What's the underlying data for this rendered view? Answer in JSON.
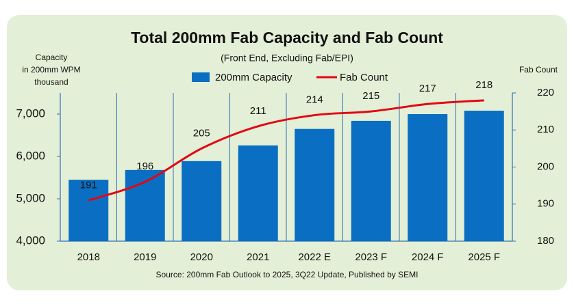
{
  "chart_data": {
    "type": "combo",
    "title": "Total 200mm Fab Capacity and Fab Count",
    "subtitle": "(Front End, Excluding Fab/EPI)",
    "y_label": [
      "Capacity",
      "in 200mm WPM",
      "thousand"
    ],
    "y2_label": "Fab Count",
    "source": "Source: 200mm Fab Outlook to 2025, 3Q22 Update, Published by SEMI",
    "categories": [
      "2018",
      "2019",
      "2020",
      "2021",
      "2022 E",
      "2023 F",
      "2024 F",
      "2025 F"
    ],
    "series": [
      {
        "name": "200mm Capacity",
        "type": "bar",
        "color": "#0a6fc2",
        "values": [
          5450,
          5680,
          5890,
          6260,
          6650,
          6840,
          7000,
          7080
        ]
      },
      {
        "name": "Fab Count",
        "type": "line",
        "axis": "y2",
        "color": "#e30613",
        "values": [
          191,
          196,
          205,
          211,
          214,
          215,
          217,
          218
        ],
        "data_labels": true
      }
    ],
    "ylim": [
      4000,
      7500
    ],
    "yticks": [
      {
        "value": 4000,
        "label": "4,000"
      },
      {
        "value": 5000,
        "label": "5,000"
      },
      {
        "value": 6000,
        "label": "6,000"
      },
      {
        "value": 7000,
        "label": "7,000"
      }
    ],
    "y2lim": [
      180,
      220
    ],
    "y2ticks": [
      180,
      190,
      200,
      210,
      220
    ],
    "legend": "top"
  }
}
